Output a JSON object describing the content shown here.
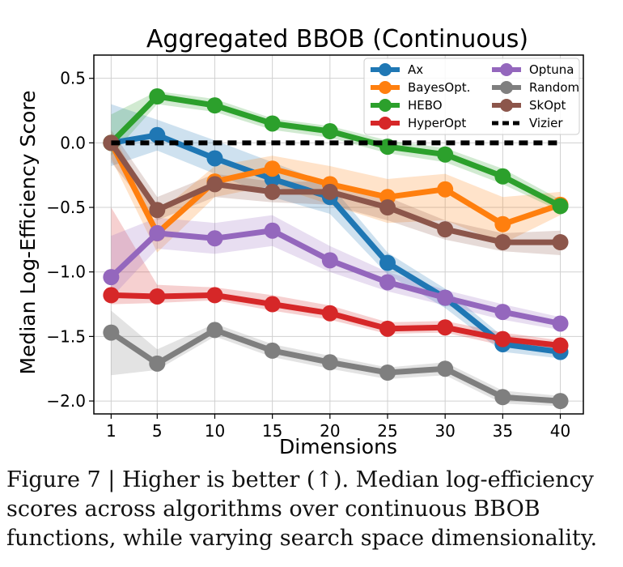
{
  "chart_data": {
    "type": "line",
    "title": "Aggregated BBOB (Continuous)",
    "xlabel": "Dimensions",
    "ylabel": "Median Log-Efficiency Score",
    "x": [
      1,
      5,
      10,
      15,
      20,
      25,
      30,
      35,
      40
    ],
    "xticks": [
      "1",
      "5",
      "10",
      "15",
      "20",
      "25",
      "30",
      "35",
      "40"
    ],
    "yticks": [
      0.5,
      0.0,
      -0.5,
      -1.0,
      -1.5,
      -2.0
    ],
    "ytick_labels": [
      "0.5",
      "0.0",
      "−0.5",
      "−1.0",
      "−1.5",
      "−2.0"
    ],
    "xlim": [
      -0.5,
      42.0
    ],
    "ylim": [
      -2.1,
      0.68
    ],
    "grid": true,
    "legend_position": "top-right",
    "series": [
      {
        "name": "Ax",
        "color": "#1f77b4",
        "values": [
          0.0,
          0.06,
          -0.12,
          -0.28,
          -0.42,
          -0.93,
          -1.2,
          -1.56,
          -1.62
        ],
        "band_low": [
          -0.18,
          -0.06,
          -0.24,
          -0.42,
          -0.55,
          -1.02,
          -1.28,
          -1.62,
          -1.67
        ],
        "band_high": [
          0.3,
          0.18,
          0.02,
          -0.15,
          -0.32,
          -0.85,
          -1.13,
          -1.5,
          -1.57
        ]
      },
      {
        "name": "BayesOpt.",
        "color": "#ff7f0e",
        "values": [
          0.0,
          -0.7,
          -0.3,
          -0.2,
          -0.32,
          -0.42,
          -0.36,
          -0.63,
          -0.48
        ],
        "band_low": [
          -0.12,
          -0.85,
          -0.42,
          -0.33,
          -0.48,
          -0.62,
          -0.6,
          -0.78,
          -0.56
        ],
        "band_high": [
          0.08,
          -0.55,
          -0.18,
          -0.1,
          -0.18,
          -0.28,
          -0.24,
          -0.42,
          -0.38
        ]
      },
      {
        "name": "HEBO",
        "color": "#2ca02c",
        "values": [
          0.0,
          0.36,
          0.29,
          0.15,
          0.09,
          -0.03,
          -0.09,
          -0.26,
          -0.49
        ],
        "band_low": [
          -0.1,
          0.3,
          0.24,
          0.1,
          0.04,
          -0.08,
          -0.15,
          -0.32,
          -0.53
        ],
        "band_high": [
          0.22,
          0.4,
          0.34,
          0.19,
          0.13,
          0.02,
          -0.04,
          -0.2,
          -0.44
        ]
      },
      {
        "name": "HyperOpt",
        "color": "#d62728",
        "values": [
          -1.18,
          -1.19,
          -1.18,
          -1.25,
          -1.32,
          -1.44,
          -1.43,
          -1.52,
          -1.57
        ],
        "band_low": [
          -1.25,
          -1.24,
          -1.22,
          -1.3,
          -1.37,
          -1.48,
          -1.47,
          -1.57,
          -1.61
        ],
        "band_high": [
          -0.5,
          -1.1,
          -1.12,
          -1.18,
          -1.26,
          -1.39,
          -1.38,
          -1.47,
          -1.53
        ]
      },
      {
        "name": "Optuna",
        "color": "#9467bd",
        "values": [
          -1.04,
          -0.7,
          -0.74,
          -0.68,
          -0.91,
          -1.08,
          -1.2,
          -1.31,
          -1.4
        ],
        "band_low": [
          -1.2,
          -0.82,
          -0.86,
          -0.8,
          -1.0,
          -1.15,
          -1.26,
          -1.37,
          -1.45
        ],
        "band_high": [
          -0.72,
          -0.58,
          -0.62,
          -0.56,
          -0.8,
          -1.0,
          -1.14,
          -1.25,
          -1.35
        ]
      },
      {
        "name": "Random",
        "color": "#7f7f7f",
        "values": [
          -1.47,
          -1.71,
          -1.45,
          -1.61,
          -1.7,
          -1.78,
          -1.75,
          -1.97,
          -2.0
        ],
        "band_low": [
          -1.8,
          -1.76,
          -1.5,
          -1.66,
          -1.75,
          -1.83,
          -1.8,
          -2.02,
          -2.04
        ],
        "band_high": [
          -1.3,
          -1.6,
          -1.4,
          -1.56,
          -1.65,
          -1.74,
          -1.7,
          -1.92,
          -1.96
        ]
      },
      {
        "name": "SkOpt",
        "color": "#8c564b",
        "values": [
          0.0,
          -0.52,
          -0.32,
          -0.38,
          -0.38,
          -0.5,
          -0.67,
          -0.77,
          -0.77
        ],
        "band_low": [
          -0.15,
          -0.6,
          -0.42,
          -0.46,
          -0.48,
          -0.6,
          -0.75,
          -0.84,
          -0.87
        ],
        "band_high": [
          0.1,
          -0.42,
          -0.24,
          -0.3,
          -0.3,
          -0.42,
          -0.6,
          -0.7,
          -0.68
        ]
      },
      {
        "name": "Vizier",
        "color": "#000000",
        "dashed": true,
        "values": [
          0.0,
          0.0,
          0.0,
          0.0,
          0.0,
          0.0,
          0.0,
          0.0,
          0.0
        ]
      }
    ]
  },
  "caption": {
    "label": "Figure 7",
    "separator": "|",
    "text": "Higher is better (↑). Median log-efficiency scores across algorithms over continuous BBOB functions, while varying search space dimensionality."
  }
}
